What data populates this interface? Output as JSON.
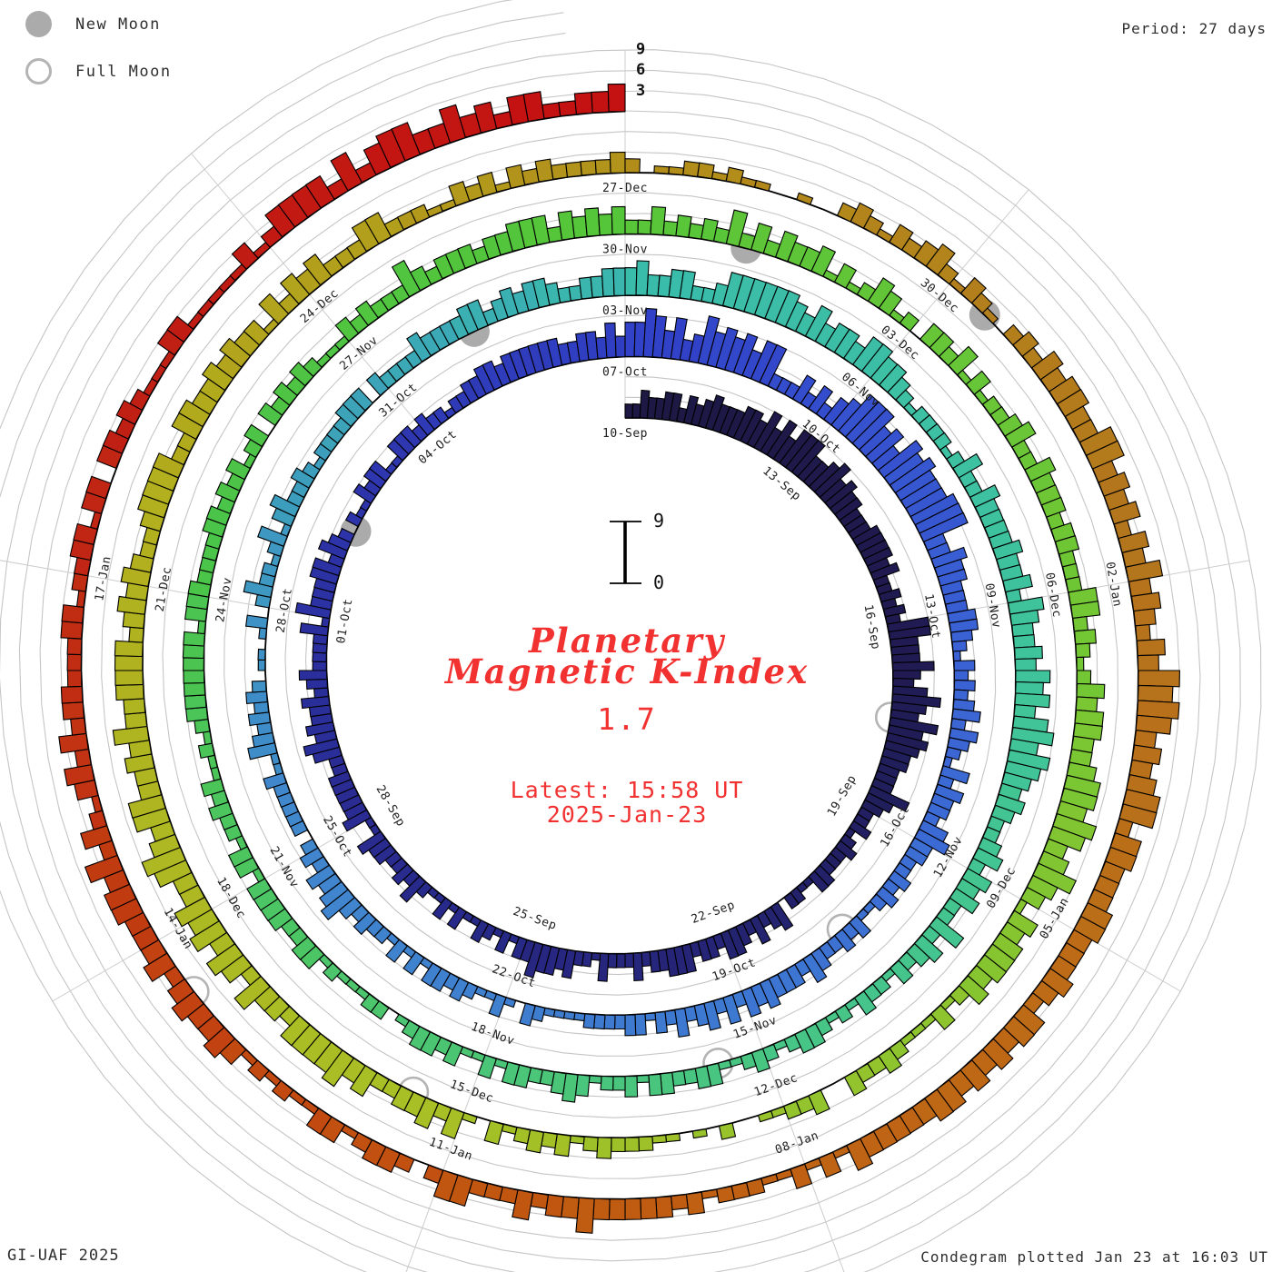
{
  "header": {
    "period_label": "Period: 27 days"
  },
  "legend": {
    "new_moon": "New Moon",
    "full_moon": "Full Moon"
  },
  "footer": {
    "left": "GI-UAF 2025",
    "right": "Condegram plotted Jan 23 at 16:03 UT"
  },
  "center": {
    "title_line1": "Planetary",
    "title_line2": "Magnetic K-Index",
    "current_value": "1.7",
    "latest_line1": "Latest: 15:58 UT",
    "latest_line2": "2025-Jan-23",
    "inner_scale_top": "9",
    "inner_scale_bottom": "0",
    "accent_color": "#f23131"
  },
  "outer_scale_labels": [
    "3",
    "6",
    "9"
  ],
  "chart_data": {
    "type": "bar",
    "subtype": "condegram-spiral",
    "title": "Planetary Magnetic K-Index",
    "start_date": "2024-09-10",
    "end_date": "2025-01-23",
    "latest_value": 1.7,
    "latest_time": "15:58 UT 2025-Jan-23",
    "period_days": 27,
    "rotations": 5,
    "bars_per_day": 8,
    "k_scale": [
      0,
      9
    ],
    "grid_arcs_k": [
      3,
      6,
      9
    ],
    "date_labels": [
      "10-Sep",
      "13-Sep",
      "16-Sep",
      "19-Sep",
      "22-Sep",
      "25-Sep",
      "28-Sep",
      "01-Oct",
      "04-Oct",
      "07-Oct",
      "10-Oct",
      "13-Oct",
      "16-Oct",
      "19-Oct",
      "22-Oct",
      "25-Oct",
      "28-Oct",
      "31-Oct",
      "03-Nov",
      "06-Nov",
      "09-Nov",
      "12-Nov",
      "15-Nov",
      "18-Nov",
      "21-Nov",
      "24-Nov",
      "27-Nov",
      "30-Nov",
      "03-Dec",
      "06-Dec",
      "09-Dec",
      "12-Dec",
      "15-Dec",
      "18-Dec",
      "21-Dec",
      "24-Dec",
      "27-Dec",
      "30-Dec",
      "02-Jan",
      "05-Jan",
      "08-Jan",
      "11-Jan",
      "14-Jan",
      "17-Jan"
    ],
    "daily_k": [
      3,
      4,
      5,
      5,
      4,
      3,
      5,
      6,
      4,
      2,
      2,
      3,
      3,
      3,
      3,
      2,
      2,
      2,
      2,
      3,
      3,
      3,
      2,
      2,
      2,
      3,
      4,
      5,
      5,
      3,
      6,
      7,
      4,
      3,
      3,
      3,
      3,
      2,
      3,
      3,
      2,
      2,
      2,
      2,
      3,
      2,
      2,
      1,
      2,
      2,
      2,
      3,
      3,
      3,
      3,
      4,
      4,
      3,
      3,
      3,
      4,
      4,
      3,
      3,
      2,
      2,
      2,
      2,
      2,
      2,
      2,
      2,
      2,
      2,
      2,
      2,
      2,
      2,
      3,
      3,
      3,
      3,
      3,
      2,
      2,
      3,
      3,
      3,
      4,
      4,
      3,
      2,
      1,
      1,
      2,
      2,
      3,
      3,
      4,
      4,
      4,
      3,
      3,
      3,
      3,
      3,
      2,
      2,
      1,
      1,
      2,
      2,
      4,
      4,
      4,
      4,
      3,
      3,
      3,
      2,
      2,
      3,
      3,
      2,
      2,
      3,
      3,
      3,
      2,
      2,
      2,
      2,
      3,
      4,
      3
    ],
    "color_stops": [
      [
        0,
        "#1d1844"
      ],
      [
        7,
        "#201c55"
      ],
      [
        13,
        "#26267c"
      ],
      [
        20,
        "#2b2f9e"
      ],
      [
        27,
        "#3142c8"
      ],
      [
        33,
        "#3a62d5"
      ],
      [
        39,
        "#3e79d1"
      ],
      [
        45,
        "#4087cc"
      ],
      [
        49,
        "#3d9dbd"
      ],
      [
        54,
        "#3abcab"
      ],
      [
        60,
        "#3fc39b"
      ],
      [
        64,
        "#45c58b"
      ],
      [
        69,
        "#4cc573"
      ],
      [
        75,
        "#4bc44a"
      ],
      [
        80,
        "#55c53a"
      ],
      [
        87,
        "#73c634"
      ],
      [
        91,
        "#8ec52f"
      ],
      [
        96,
        "#a8bf25"
      ],
      [
        102,
        "#b2b01e"
      ],
      [
        108,
        "#b28d1a"
      ],
      [
        113,
        "#b3761d"
      ],
      [
        117,
        "#bd6b16"
      ],
      [
        121,
        "#c05c12"
      ],
      [
        124,
        "#c24a10"
      ],
      [
        127,
        "#c13312"
      ],
      [
        130,
        "#c02014"
      ],
      [
        134,
        "#c41111"
      ]
    ],
    "moons": [
      {
        "date": "2024-09-17",
        "type": "full",
        "day": 7.5
      },
      {
        "date": "2024-10-02",
        "type": "new",
        "day": 22.3
      },
      {
        "date": "2024-10-17",
        "type": "full",
        "day": 37.5
      },
      {
        "date": "2024-11-01",
        "type": "new",
        "day": 52.2
      },
      {
        "date": "2024-11-15",
        "type": "full",
        "day": 66.5
      },
      {
        "date": "2024-12-01",
        "type": "new",
        "day": 82.2
      },
      {
        "date": "2024-12-15",
        "type": "full",
        "day": 96.5
      },
      {
        "date": "2024-12-30",
        "type": "new",
        "day": 111.4
      },
      {
        "date": "2025-01-13",
        "type": "full",
        "day": 125.5
      }
    ],
    "legend_position": "top-left",
    "grid": true,
    "colors": {
      "grid_arc": "#c5c5c5",
      "spoke": "#cdcdcd",
      "bar_outline": "#000000",
      "moon_new_fill": "#ababab",
      "moon_full_stroke": "#b4b4b4",
      "label_text": "#202020"
    }
  }
}
